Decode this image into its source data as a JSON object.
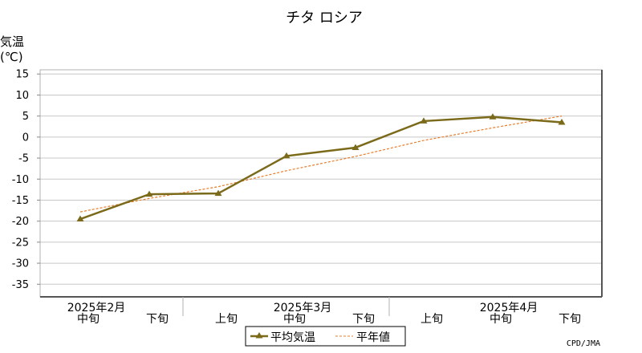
{
  "chart_data": {
    "type": "line",
    "title": "チタ ロシア",
    "ylabel_line1": "気温",
    "ylabel_line2": "(℃)",
    "ylim": [
      -38,
      16
    ],
    "yticks": [
      15,
      10,
      5,
      0,
      -5,
      -10,
      -15,
      -20,
      -25,
      -30,
      -35
    ],
    "x_labels": [
      "中旬",
      "下旬",
      "上旬",
      "中旬",
      "下旬",
      "上旬",
      "中旬",
      "下旬"
    ],
    "month_labels": [
      {
        "text": "2025年2月",
        "at_index": 0
      },
      {
        "text": "2025年3月",
        "at_index": 3
      },
      {
        "text": "2025年4月",
        "at_index": 6
      }
    ],
    "series": [
      {
        "name": "平均気温",
        "color": "#7a6a1a",
        "style": "solid-marker",
        "values": [
          -19.5,
          -13.6,
          -13.4,
          -4.5,
          -2.5,
          3.8,
          4.8,
          3.5
        ]
      },
      {
        "name": "平年値",
        "color": "#e87c2a",
        "style": "dashed",
        "values": [
          -17.8,
          -14.6,
          -11.8,
          -8.0,
          -4.6,
          -0.8,
          2.2,
          5.0
        ]
      }
    ],
    "grid": true,
    "legend_position": "bottom-center"
  },
  "credit": "CPD/JMA"
}
